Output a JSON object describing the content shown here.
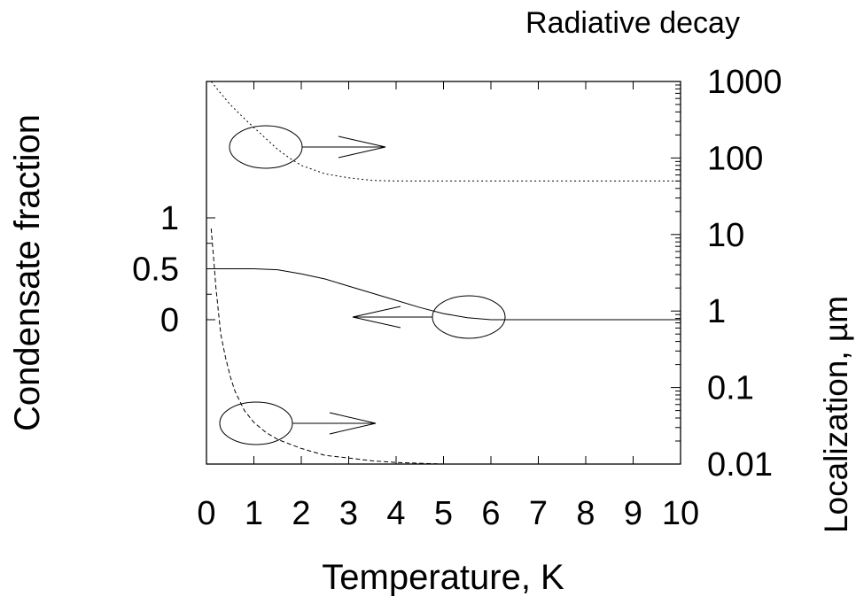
{
  "chart_data": {
    "type": "line",
    "title": "",
    "xlabel": "Temperature, K",
    "ylabel_left": "Condensate fraction",
    "ylabel_right": "Localization, µm",
    "ylabel_right_top": "Radiative decay",
    "xlim": [
      0,
      10
    ],
    "xticks": [
      0,
      1,
      2,
      3,
      4,
      5,
      6,
      7,
      8,
      9,
      10
    ],
    "left_axis": {
      "ticks": [
        0,
        0.5,
        1
      ],
      "tick_labels": [
        "0",
        "0.5",
        "1"
      ]
    },
    "right_axis": {
      "scale": "log",
      "ylim": [
        0.01,
        1000
      ],
      "ticks": [
        0.01,
        0.1,
        1,
        10,
        100,
        1000
      ],
      "tick_labels": [
        "0.01",
        "0.1",
        "1",
        "10",
        "100",
        "1000"
      ]
    },
    "grid": false,
    "series": [
      {
        "axis": "left",
        "style": "solid",
        "x": [
          0,
          1,
          1.5,
          2,
          2.5,
          3,
          3.5,
          4,
          4.5,
          5,
          5.5,
          6,
          6.5,
          7,
          8,
          9,
          10
        ],
        "y": [
          0.5,
          0.5,
          0.49,
          0.45,
          0.4,
          0.33,
          0.26,
          0.19,
          0.12,
          0.06,
          0.02,
          0,
          0,
          0,
          0,
          0,
          0
        ]
      },
      {
        "axis": "right",
        "style": "dotted",
        "x": [
          0.1,
          0.3,
          0.5,
          0.75,
          1,
          1.25,
          1.5,
          1.75,
          2,
          2.5,
          3,
          3.5,
          4,
          5,
          6,
          7,
          8,
          9,
          10
        ],
        "y": [
          1000,
          700,
          500,
          350,
          250,
          180,
          130,
          100,
          80,
          62,
          55,
          51,
          50,
          50,
          50,
          50,
          50,
          50,
          50
        ]
      },
      {
        "axis": "right",
        "style": "dashed",
        "x": [
          0.1,
          0.15,
          0.2,
          0.25,
          0.3,
          0.4,
          0.5,
          0.6,
          0.8,
          1,
          1.25,
          1.5,
          2,
          2.5,
          3,
          3.5,
          4,
          5,
          5.8
        ],
        "y": [
          12,
          5,
          2,
          1,
          0.5,
          0.25,
          0.14,
          0.09,
          0.05,
          0.035,
          0.026,
          0.021,
          0.016,
          0.013,
          0.012,
          0.011,
          0.0105,
          0.01,
          0.01
        ]
      }
    ]
  }
}
